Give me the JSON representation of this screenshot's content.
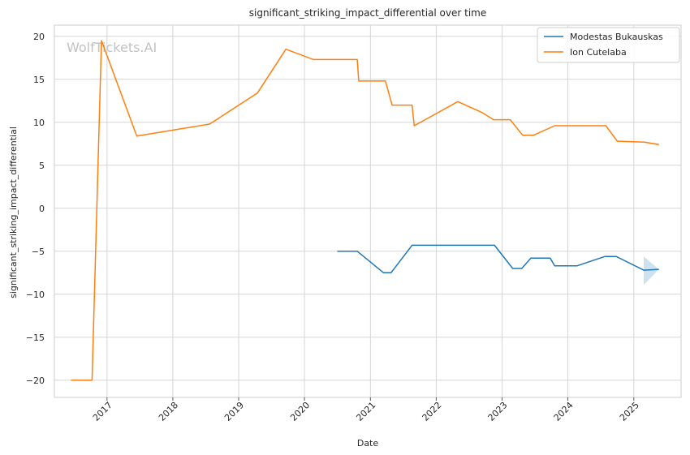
{
  "chart_data": {
    "type": "line",
    "title": "significant_striking_impact_differential over time",
    "xlabel": "Date",
    "ylabel": "significant_striking_impact_differential",
    "watermark": "WolfTickets.AI",
    "x_range": [
      "2016-03-15",
      "2025-09-20"
    ],
    "ylim": [
      -22,
      21.3
    ],
    "x_ticks": [
      {
        "date": "2017-01-01",
        "label": "2017"
      },
      {
        "date": "2018-01-01",
        "label": "2018"
      },
      {
        "date": "2019-01-01",
        "label": "2019"
      },
      {
        "date": "2020-01-01",
        "label": "2020"
      },
      {
        "date": "2021-01-01",
        "label": "2021"
      },
      {
        "date": "2022-01-01",
        "label": "2022"
      },
      {
        "date": "2023-01-01",
        "label": "2023"
      },
      {
        "date": "2024-01-01",
        "label": "2024"
      },
      {
        "date": "2025-01-01",
        "label": "2025"
      }
    ],
    "y_ticks": [
      {
        "value": 20,
        "label": "20"
      },
      {
        "value": 15,
        "label": "15"
      },
      {
        "value": 10,
        "label": "10"
      },
      {
        "value": 5,
        "label": "5"
      },
      {
        "value": 0,
        "label": "0"
      },
      {
        "value": -5,
        "label": "−5"
      },
      {
        "value": -10,
        "label": "−10"
      },
      {
        "value": -15,
        "label": "−15"
      },
      {
        "value": -20,
        "label": "−20"
      }
    ],
    "grid": true,
    "legend_position": "top-right",
    "series": [
      {
        "name": "Modestas Bukauskas",
        "color": "#1f77b4",
        "points": [
          [
            "2020-07-01",
            -5.0
          ],
          [
            "2020-10-20",
            -5.0
          ],
          [
            "2021-03-15",
            -7.5
          ],
          [
            "2021-04-25",
            -7.5
          ],
          [
            "2021-08-20",
            -4.3
          ],
          [
            "2022-11-20",
            -4.3
          ],
          [
            "2023-03-01",
            -7.0
          ],
          [
            "2023-04-20",
            -7.0
          ],
          [
            "2023-06-10",
            -5.8
          ],
          [
            "2023-09-25",
            -5.8
          ],
          [
            "2023-10-20",
            -6.7
          ],
          [
            "2024-02-20",
            -6.7
          ],
          [
            "2024-07-25",
            -5.6
          ],
          [
            "2024-09-25",
            -5.6
          ],
          [
            "2025-02-25",
            -7.2
          ],
          [
            "2025-05-20",
            -7.1
          ]
        ],
        "band": {
          "upper": [
            [
              "2025-02-25",
              -5.6
            ],
            [
              "2025-05-20",
              -7.1
            ]
          ],
          "lower": [
            [
              "2025-02-25",
              -8.9
            ],
            [
              "2025-05-20",
              -7.1
            ]
          ]
        }
      },
      {
        "name": "Ion Cutelaba",
        "color": "#ff7f0e",
        "points": [
          [
            "2016-06-15",
            -20.0
          ],
          [
            "2016-10-10",
            -20.0
          ],
          [
            "2016-12-01",
            19.5
          ],
          [
            "2017-06-15",
            8.4
          ],
          [
            "2018-07-25",
            9.8
          ],
          [
            "2019-04-15",
            13.4
          ],
          [
            "2019-09-20",
            18.5
          ],
          [
            "2020-02-20",
            17.3
          ],
          [
            "2020-10-20",
            17.3
          ],
          [
            "2020-10-28",
            14.8
          ],
          [
            "2021-03-25",
            14.8
          ],
          [
            "2021-05-01",
            12.0
          ],
          [
            "2021-08-20",
            12.0
          ],
          [
            "2021-09-01",
            9.6
          ],
          [
            "2022-05-01",
            12.4
          ],
          [
            "2022-09-15",
            11.1
          ],
          [
            "2022-11-15",
            10.3
          ],
          [
            "2023-02-15",
            10.3
          ],
          [
            "2023-04-25",
            8.5
          ],
          [
            "2023-06-25",
            8.5
          ],
          [
            "2023-10-20",
            9.6
          ],
          [
            "2024-07-30",
            9.6
          ],
          [
            "2024-10-01",
            7.8
          ],
          [
            "2025-03-01",
            7.7
          ],
          [
            "2025-05-20",
            7.4
          ]
        ],
        "band": {
          "upper": [
            [
              "2025-03-01",
              7.7
            ],
            [
              "2025-05-20",
              7.55
            ]
          ],
          "lower": [
            [
              "2025-03-01",
              7.7
            ],
            [
              "2025-05-20",
              7.25
            ]
          ]
        }
      }
    ]
  }
}
